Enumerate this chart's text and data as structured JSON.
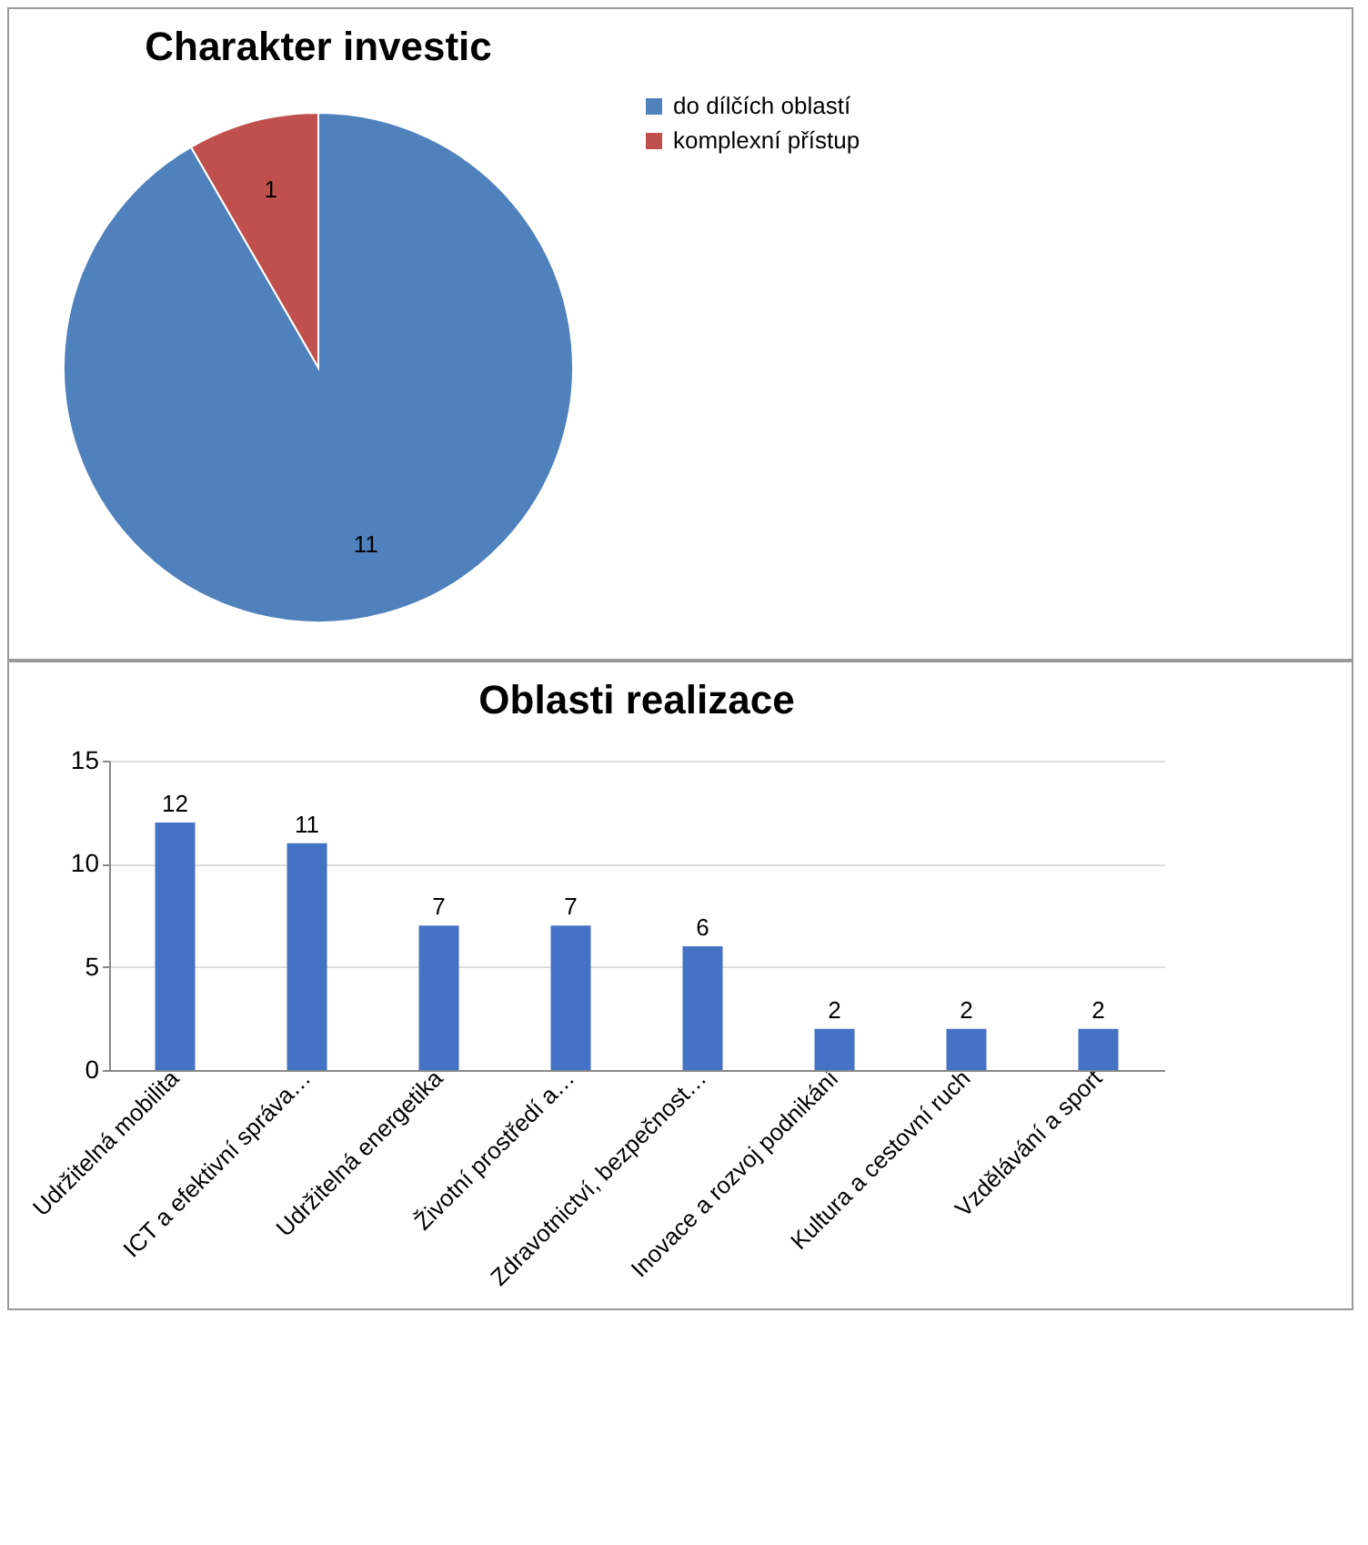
{
  "chart_data": [
    {
      "type": "pie",
      "title": "Charakter investic",
      "categories": [
        "do dílčích oblastí",
        "komplexní přístup"
      ],
      "values": [
        11,
        1
      ],
      "colors": [
        "#4f81bd",
        "#c0504d"
      ],
      "data_labels": true,
      "legend": "right"
    },
    {
      "type": "bar",
      "title": "Oblasti realizace",
      "categories": [
        "Udržitelná mobilita",
        "ICT a efektivní správa…",
        "Udržitelná energetika",
        "Životní prostředí a…",
        "Zdravotnictví, bezpečnost…",
        "Inovace a rozvoj podnikání",
        "Kultura a cestovní ruch",
        "Vzdělávání a sport"
      ],
      "values": [
        12,
        11,
        7,
        7,
        6,
        2,
        2,
        2
      ],
      "color": "#4472c4",
      "ylim": [
        0,
        15
      ],
      "yticks": [
        0,
        5,
        10,
        15
      ],
      "grid": "y",
      "data_labels": true
    }
  ]
}
